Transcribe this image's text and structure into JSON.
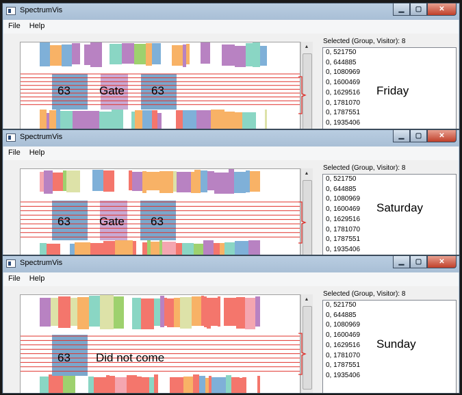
{
  "windows": [
    {
      "title": "SpectrumVis",
      "menu": [
        "File",
        "Help"
      ],
      "selected_label": "Selected (Group, Visitor):  8",
      "list_items": [
        "0, 521750",
        "0, 644885",
        "0, 1080969",
        "0, 1600469",
        "0, 1629516",
        "0, 1781070",
        "0, 1787551",
        "0, 1935406"
      ],
      "labels": [
        "63",
        "Gate",
        "63"
      ],
      "day": "Friday"
    },
    {
      "title": "SpectrumVis",
      "menu": [
        "File",
        "Help"
      ],
      "selected_label": "Selected (Group, Visitor):  8",
      "list_items": [
        "0, 521750",
        "0, 644885",
        "0, 1080969",
        "0, 1600469",
        "0, 1629516",
        "0, 1781070",
        "0, 1787551",
        "0, 1935406"
      ],
      "labels": [
        "63",
        "Gate",
        "63"
      ],
      "day": "Saturday"
    },
    {
      "title": "SpectrumVis",
      "menu": [
        "File",
        "Help"
      ],
      "selected_label": "Selected (Group, Visitor):  8",
      "list_items": [
        "0, 521750",
        "0, 644885",
        "0, 1080969",
        "0, 1600469",
        "0, 1629516",
        "0, 1781070",
        "0, 1787551",
        "0, 1935406"
      ],
      "labels": [
        "63",
        "Did not come"
      ],
      "day": "Sunday"
    }
  ],
  "icons": {
    "minimize": "minimize-icon",
    "maximize": "maximize-icon",
    "close": "close-icon",
    "app": "app-icon"
  },
  "colors": {
    "highlight_line": "#e0302a",
    "blue_block": "#7ba7cc",
    "gate_block": "#c9a9d3",
    "red": "#f4766c",
    "orange": "#f8b266",
    "purple": "#b882c2",
    "teal": "#8ad6c4",
    "green": "#9ed16e",
    "blue": "#7fb0d8"
  }
}
